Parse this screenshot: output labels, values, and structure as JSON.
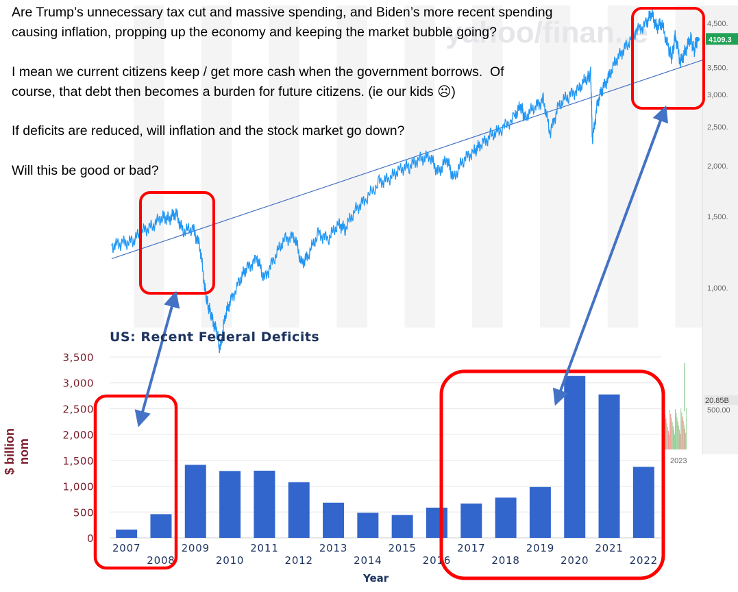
{
  "question": {
    "line1": "Are Trump’s unnecessary tax cut and massive spending, and Biden’s more recent spending",
    "line2": "causing inflation, propping up the economy and keeping the market bubble going?",
    "line3": "I mean we current citizens keep / get more cash when the government borrows.  Of",
    "line4": "course, that debt then becomes a burden for future citizens. (ie our kids ☹)",
    "line5": "If deficits are reduced, will inflation and the stock market go down?",
    "line6": "Will this be good or bad?"
  },
  "watermark": "yahoo/finan..e",
  "chart_data": [
    {
      "type": "line",
      "title": "",
      "price_label": "4109.3",
      "volume_label": "20.85B",
      "x_tick": "2023",
      "y_ticks": [
        {
          "label": "4,500.",
          "value": 4500
        },
        {
          "label": "3,500.",
          "value": 3500
        },
        {
          "label": "3,000.",
          "value": 3000
        },
        {
          "label": "2,500.",
          "value": 2500
        },
        {
          "label": "2,000.",
          "value": 2000
        },
        {
          "label": "1,500.",
          "value": 1500
        },
        {
          "label": "1,000.",
          "value": 1000
        },
        {
          "label": "500.00",
          "value": 500
        }
      ],
      "series": [
        {
          "points": [
            [
              2006.0,
              1270
            ],
            [
              2006.3,
              1290
            ],
            [
              2006.6,
              1300
            ],
            [
              2006.9,
              1380
            ],
            [
              2007.2,
              1420
            ],
            [
              2007.5,
              1500
            ],
            [
              2007.7,
              1480
            ],
            [
              2007.9,
              1530
            ],
            [
              2008.1,
              1380
            ],
            [
              2008.4,
              1400
            ],
            [
              2008.6,
              1270
            ],
            [
              2008.75,
              1000
            ],
            [
              2008.85,
              900
            ],
            [
              2008.95,
              850
            ],
            [
              2009.1,
              780
            ],
            [
              2009.2,
              700
            ],
            [
              2009.35,
              850
            ],
            [
              2009.5,
              920
            ],
            [
              2009.8,
              1050
            ],
            [
              2010.0,
              1120
            ],
            [
              2010.3,
              1180
            ],
            [
              2010.5,
              1050
            ],
            [
              2010.8,
              1180
            ],
            [
              2011.1,
              1320
            ],
            [
              2011.4,
              1340
            ],
            [
              2011.6,
              1150
            ],
            [
              2011.8,
              1200
            ],
            [
              2012.1,
              1360
            ],
            [
              2012.4,
              1320
            ],
            [
              2012.7,
              1440
            ],
            [
              2012.9,
              1400
            ],
            [
              2013.2,
              1560
            ],
            [
              2013.5,
              1650
            ],
            [
              2013.9,
              1820
            ],
            [
              2014.2,
              1860
            ],
            [
              2014.5,
              1960
            ],
            [
              2014.8,
              2000
            ],
            [
              2015.1,
              2080
            ],
            [
              2015.4,
              2110
            ],
            [
              2015.65,
              1920
            ],
            [
              2015.9,
              2080
            ],
            [
              2016.1,
              1860
            ],
            [
              2016.4,
              2080
            ],
            [
              2016.7,
              2170
            ],
            [
              2016.9,
              2250
            ],
            [
              2017.2,
              2380
            ],
            [
              2017.5,
              2450
            ],
            [
              2017.9,
              2650
            ],
            [
              2018.1,
              2820
            ],
            [
              2018.2,
              2620
            ],
            [
              2018.5,
              2800
            ],
            [
              2018.75,
              2910
            ],
            [
              2018.95,
              2400
            ],
            [
              2019.2,
              2820
            ],
            [
              2019.5,
              2980
            ],
            [
              2019.8,
              3100
            ],
            [
              2020.05,
              3300
            ],
            [
              2020.15,
              3380
            ],
            [
              2020.2,
              2300
            ],
            [
              2020.35,
              2850
            ],
            [
              2020.5,
              3100
            ],
            [
              2020.7,
              3350
            ],
            [
              2020.95,
              3700
            ],
            [
              2021.2,
              3950
            ],
            [
              2021.5,
              4300
            ],
            [
              2021.8,
              4500
            ],
            [
              2021.95,
              4770
            ],
            [
              2022.1,
              4400
            ],
            [
              2022.25,
              4500
            ],
            [
              2022.45,
              3900
            ],
            [
              2022.55,
              3700
            ],
            [
              2022.65,
              4200
            ],
            [
              2022.8,
              3600
            ],
            [
              2022.95,
              3850
            ],
            [
              2023.1,
              4150
            ],
            [
              2023.2,
              3850
            ],
            [
              2023.3,
              4109
            ]
          ]
        }
      ],
      "trendline": [
        [
          2006.0,
          1180
        ],
        [
          2023.45,
          3650
        ]
      ]
    },
    {
      "type": "bar",
      "title": "US: Recent Federal Deficits",
      "xlabel": "Year",
      "ylabel": "$ billion nom",
      "ylim": [
        0,
        3500
      ],
      "y_ticks": [
        {
          "label": "3,500",
          "value": 3500
        },
        {
          "label": "3,000",
          "value": 3000
        },
        {
          "label": "2,500",
          "value": 2500
        },
        {
          "label": "2,000",
          "value": 2000
        },
        {
          "label": "1,500",
          "value": 1500
        },
        {
          "label": "1,000",
          "value": 1000
        },
        {
          "label": "500",
          "value": 500
        },
        {
          "label": "0",
          "value": 0
        }
      ],
      "categories": [
        "2007",
        "2008",
        "2009",
        "2010",
        "2011",
        "2012",
        "2013",
        "2014",
        "2015",
        "2016",
        "2017",
        "2018",
        "2019",
        "2020",
        "2021",
        "2022"
      ],
      "values": [
        161,
        459,
        1413,
        1294,
        1300,
        1077,
        680,
        485,
        442,
        585,
        665,
        779,
        984,
        3132,
        2775,
        1375
      ],
      "color": "#3366cc"
    }
  ]
}
